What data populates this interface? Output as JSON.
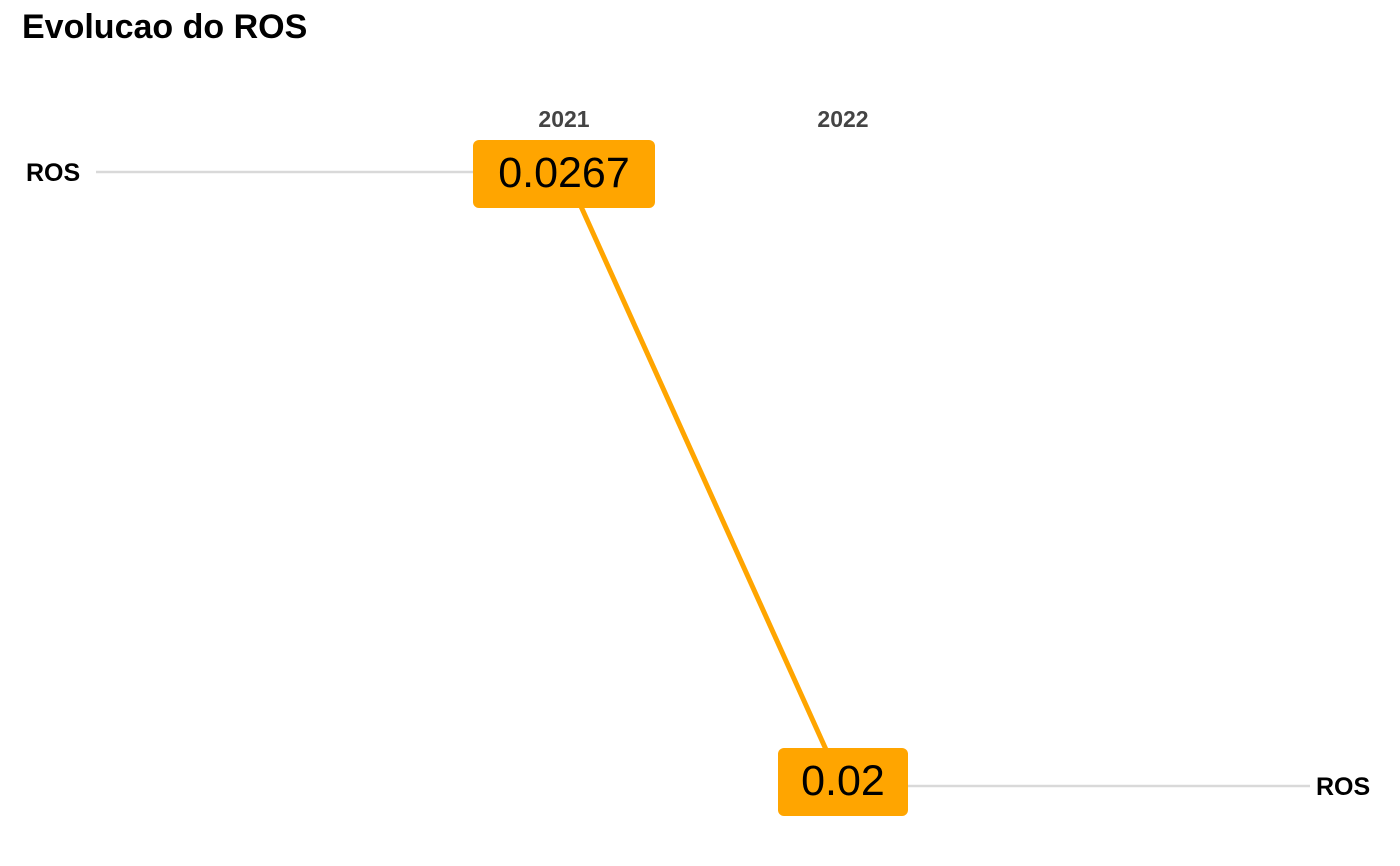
{
  "chart_data": {
    "type": "line",
    "title": "Evolucao do ROS",
    "xlabel": "",
    "ylabel": "",
    "categories": [
      "2021",
      "2022"
    ],
    "series": [
      {
        "name": "ROS",
        "values": [
          0.0267,
          0.02
        ],
        "labels": [
          "0.0267",
          "0.02"
        ]
      }
    ],
    "ylim": [
      0.02,
      0.0267
    ],
    "grid": false,
    "legend": "none",
    "colors": {
      "series": "#FFA500",
      "label_fill": "#FFA500",
      "guide_line": "#D9D9D9",
      "column_label": "#444444",
      "text": "#000000"
    }
  }
}
